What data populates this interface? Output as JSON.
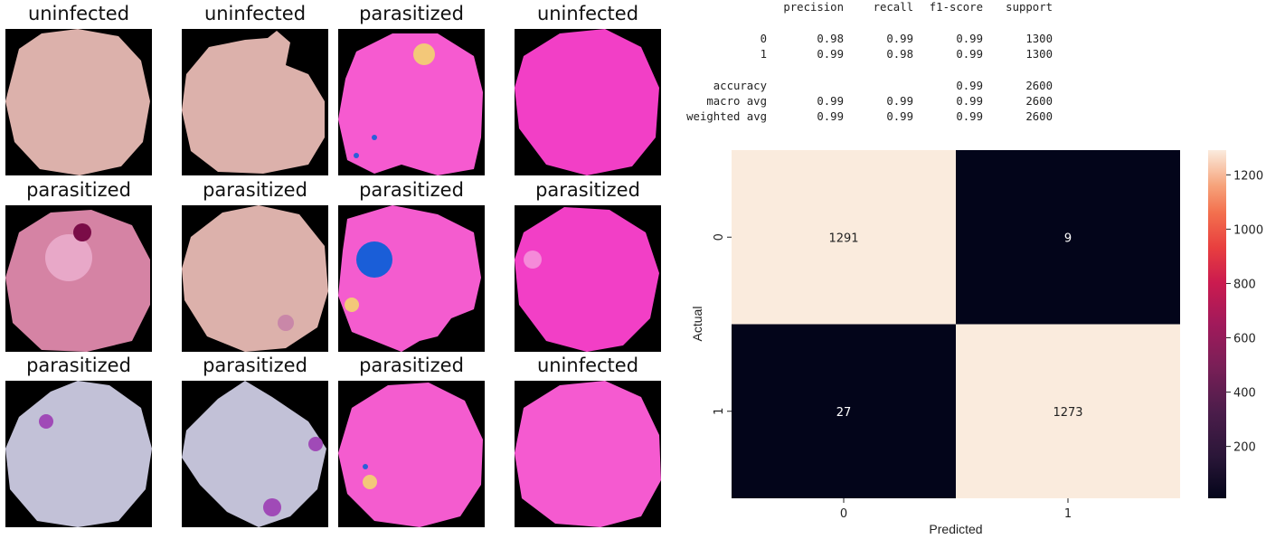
{
  "cells": [
    {
      "label": "uninfected",
      "image": "uninfected-cell-image"
    },
    {
      "label": "uninfected",
      "image": "uninfected-cell-image"
    },
    {
      "label": "parasitized",
      "image": "parasitized-cell-image"
    },
    {
      "label": "uninfected",
      "image": "uninfected-cell-image"
    },
    {
      "label": "parasitized",
      "image": "parasitized-cell-image"
    },
    {
      "label": "parasitized",
      "image": "parasitized-cell-image"
    },
    {
      "label": "parasitized",
      "image": "parasitized-cell-image"
    },
    {
      "label": "parasitized",
      "image": "parasitized-cell-image"
    },
    {
      "label": "parasitized",
      "image": "parasitized-cell-image"
    },
    {
      "label": "parasitized",
      "image": "parasitized-cell-image"
    },
    {
      "label": "parasitized",
      "image": "parasitized-cell-image"
    },
    {
      "label": "uninfected",
      "image": "uninfected-cell-image"
    }
  ],
  "report": {
    "headers": [
      "precision",
      "recall",
      "f1-score",
      "support"
    ],
    "rows": [
      {
        "label": "0",
        "values": [
          "0.98",
          "0.99",
          "0.99",
          "1300"
        ]
      },
      {
        "label": "1",
        "values": [
          "0.99",
          "0.98",
          "0.99",
          "1300"
        ]
      },
      {
        "label": "accuracy",
        "values": [
          "",
          "",
          "0.99",
          "2600"
        ]
      },
      {
        "label": "macro avg",
        "values": [
          "0.99",
          "0.99",
          "0.99",
          "2600"
        ]
      },
      {
        "label": "weighted avg",
        "values": [
          "0.99",
          "0.99",
          "0.99",
          "2600"
        ]
      }
    ]
  },
  "chart_data": {
    "type": "heatmap",
    "x_categories": [
      "0",
      "1"
    ],
    "y_categories": [
      "0",
      "1"
    ],
    "values": [
      [
        1291,
        9
      ],
      [
        27,
        1273
      ]
    ],
    "xlabel": "Predicted",
    "ylabel": "Actual",
    "colorbar": {
      "ticks": [
        200,
        400,
        600,
        800,
        1000,
        1200
      ],
      "min": 9,
      "max": 1291
    },
    "colormap": "rocket"
  }
}
